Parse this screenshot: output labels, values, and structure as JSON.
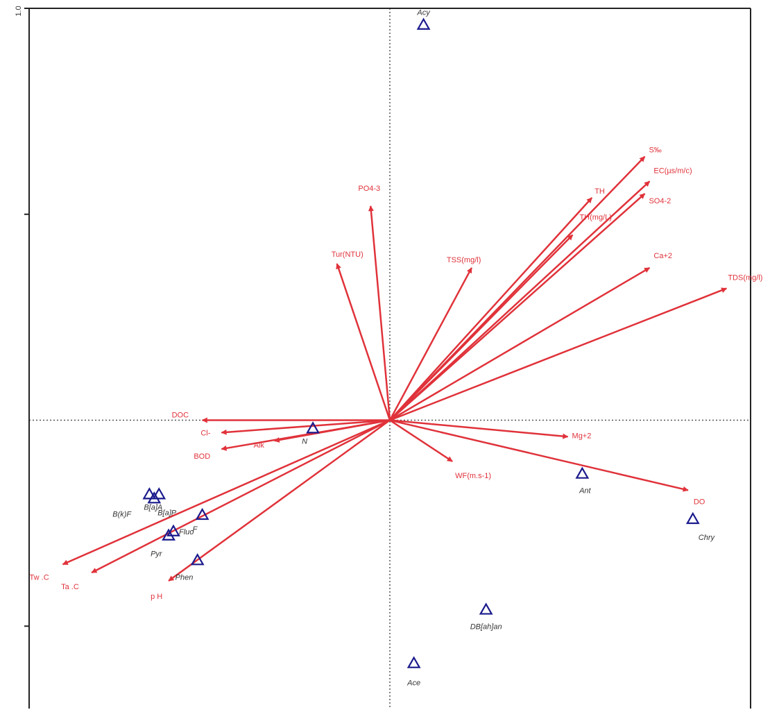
{
  "chart_data": {
    "type": "scatter",
    "subtype": "rda-biplot",
    "title": "",
    "xlabel": "",
    "ylabel": "",
    "xlim": [
      -0.75,
      0.75
    ],
    "ylim": [
      -0.7,
      1.0
    ],
    "yticks": [
      {
        "value": 1.0,
        "label": "1.0"
      },
      {
        "value": 0.5,
        "label": ""
      },
      {
        "value": -0.5,
        "label": ""
      }
    ],
    "grid": false,
    "zero_lines": true,
    "colors": {
      "vector": "#e0323a",
      "site": "#1a1a8c",
      "axis": "#222222",
      "zero_line": "#555555"
    },
    "vectors": [
      {
        "label": "S‰",
        "x": 0.53,
        "y": 0.64
      },
      {
        "label": "EC(µs/m/c)",
        "x": 0.54,
        "y": 0.58
      },
      {
        "label": "TH",
        "x": 0.42,
        "y": 0.54
      },
      {
        "label": "SO4-2",
        "x": 0.53,
        "y": 0.55
      },
      {
        "label": "TH(mg/L)",
        "x": 0.38,
        "y": 0.45
      },
      {
        "label": "PO4-3",
        "x": -0.04,
        "y": 0.52
      },
      {
        "label": "Tur(NTU)",
        "x": -0.11,
        "y": 0.38
      },
      {
        "label": "TSS(mg/l)",
        "x": 0.17,
        "y": 0.37
      },
      {
        "label": "Ca+2",
        "x": 0.54,
        "y": 0.37
      },
      {
        "label": "TDS(mg/l)",
        "x": 0.7,
        "y": 0.32
      },
      {
        "label": "DOC",
        "x": -0.39,
        "y": 0.0
      },
      {
        "label": "Cl-",
        "x": -0.35,
        "y": -0.03
      },
      {
        "label": "Alk",
        "x": -0.24,
        "y": -0.05
      },
      {
        "label": "BOD",
        "x": -0.35,
        "y": -0.07
      },
      {
        "label": "Mg+2",
        "x": 0.37,
        "y": -0.04
      },
      {
        "label": "WF(m.s-1)",
        "x": 0.13,
        "y": -0.1
      },
      {
        "label": "DO",
        "x": 0.62,
        "y": -0.17
      },
      {
        "label": "Tw .C",
        "x": -0.68,
        "y": -0.35
      },
      {
        "label": "Ta .C",
        "x": -0.62,
        "y": -0.37
      },
      {
        "label": "p H",
        "x": -0.46,
        "y": -0.39
      }
    ],
    "sites": [
      {
        "label": "Acy",
        "x": 0.07,
        "y": 0.96
      },
      {
        "label": "N",
        "x": -0.16,
        "y": -0.02
      },
      {
        "label": "Ant",
        "x": 0.4,
        "y": -0.13
      },
      {
        "label": "Chry",
        "x": 0.63,
        "y": -0.24
      },
      {
        "label": "B[a]A",
        "x": -0.5,
        "y": -0.18
      },
      {
        "label": "B[a]P",
        "x": -0.48,
        "y": -0.18
      },
      {
        "label": "B(k)F",
        "x": -0.49,
        "y": -0.19
      },
      {
        "label": "F",
        "x": -0.39,
        "y": -0.23
      },
      {
        "label": "Fluo",
        "x": -0.45,
        "y": -0.27
      },
      {
        "label": "Pyr",
        "x": -0.46,
        "y": -0.28
      },
      {
        "label": "Phen",
        "x": -0.4,
        "y": -0.34
      },
      {
        "label": "DB[ah]an",
        "x": 0.2,
        "y": -0.46
      },
      {
        "label": "Ace",
        "x": 0.05,
        "y": -0.59
      }
    ]
  }
}
